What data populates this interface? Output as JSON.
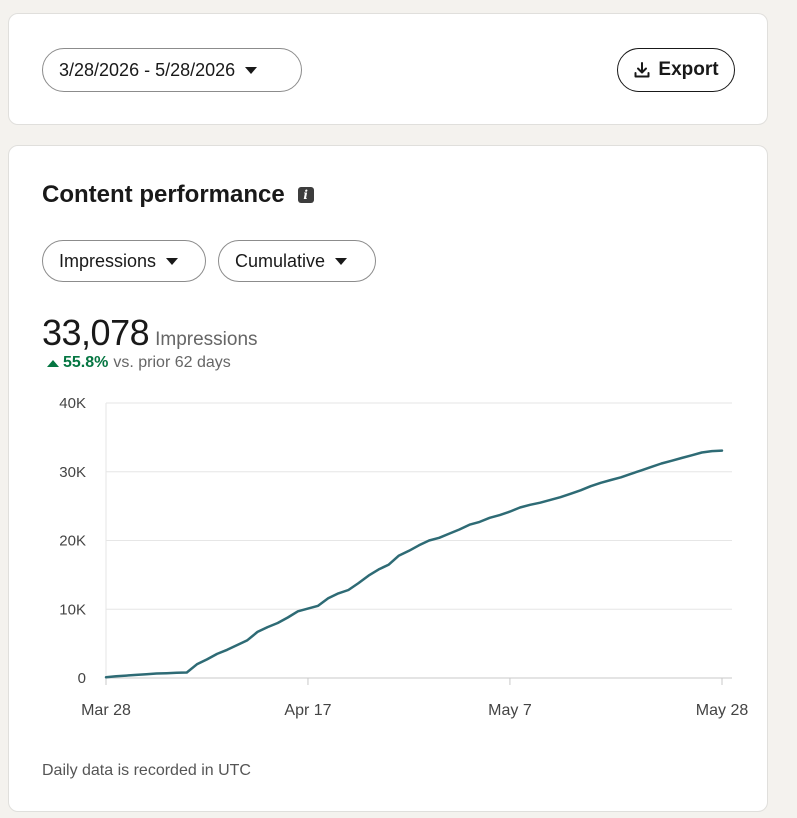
{
  "toolbar": {
    "date_range": "3/28/2026 - 5/28/2026",
    "export_label": "Export"
  },
  "content": {
    "title": "Content performance",
    "metric_dropdown": "Impressions",
    "mode_dropdown": "Cumulative",
    "total_value": "33,078",
    "total_unit": "Impressions",
    "change_value": "55.8%",
    "change_text": "vs. prior 62 days",
    "footnote": "Daily data is recorded in UTC"
  },
  "colors": {
    "line": "#2e6b75",
    "positive": "#057642"
  },
  "chart_data": {
    "type": "line",
    "title": "",
    "xlabel": "",
    "ylabel": "",
    "ylim": [
      0,
      40000
    ],
    "yticks": [
      0,
      10000,
      20000,
      30000,
      40000
    ],
    "ytick_labels": [
      "0",
      "10K",
      "20K",
      "30K",
      "40K"
    ],
    "xticks": [
      "2026-03-28",
      "2026-04-17",
      "2026-05-07",
      "2026-05-28"
    ],
    "xtick_labels": [
      "Mar 28",
      "Apr 17",
      "May 7",
      "May 28"
    ],
    "grid": true,
    "series": [
      {
        "x": [
          "2026-03-28",
          "2026-03-29",
          "2026-03-30",
          "2026-03-31",
          "2026-04-01",
          "2026-04-02",
          "2026-04-03",
          "2026-04-04",
          "2026-04-05",
          "2026-04-06",
          "2026-04-07",
          "2026-04-08",
          "2026-04-09",
          "2026-04-10",
          "2026-04-11",
          "2026-04-12",
          "2026-04-13",
          "2026-04-14",
          "2026-04-15",
          "2026-04-16",
          "2026-04-17",
          "2026-04-18",
          "2026-04-19",
          "2026-04-20",
          "2026-04-21",
          "2026-04-22",
          "2026-04-23",
          "2026-04-24",
          "2026-04-25",
          "2026-04-26",
          "2026-04-27",
          "2026-04-28",
          "2026-04-29",
          "2026-04-30",
          "2026-05-01",
          "2026-05-02",
          "2026-05-03",
          "2026-05-04",
          "2026-05-05",
          "2026-05-06",
          "2026-05-07",
          "2026-05-08",
          "2026-05-09",
          "2026-05-10",
          "2026-05-11",
          "2026-05-12",
          "2026-05-13",
          "2026-05-14",
          "2026-05-15",
          "2026-05-16",
          "2026-05-17",
          "2026-05-18",
          "2026-05-19",
          "2026-05-20",
          "2026-05-21",
          "2026-05-22",
          "2026-05-23",
          "2026-05-24",
          "2026-05-25",
          "2026-05-26",
          "2026-05-27",
          "2026-05-28"
        ],
        "values": [
          100,
          250,
          350,
          450,
          550,
          650,
          700,
          750,
          800,
          2000,
          2700,
          3500,
          4100,
          4800,
          5500,
          6700,
          7400,
          8000,
          8800,
          9700,
          10100,
          10500,
          11600,
          12300,
          12800,
          13800,
          14900,
          15800,
          16500,
          17800,
          18500,
          19300,
          20000,
          20400,
          21000,
          21600,
          22300,
          22700,
          23300,
          23700,
          24200,
          24800,
          25200,
          25500,
          25900,
          26300,
          26800,
          27300,
          27900,
          28400,
          28800,
          29200,
          29700,
          30200,
          30700,
          31200,
          31600,
          32000,
          32400,
          32800,
          33000,
          33078
        ]
      }
    ]
  }
}
